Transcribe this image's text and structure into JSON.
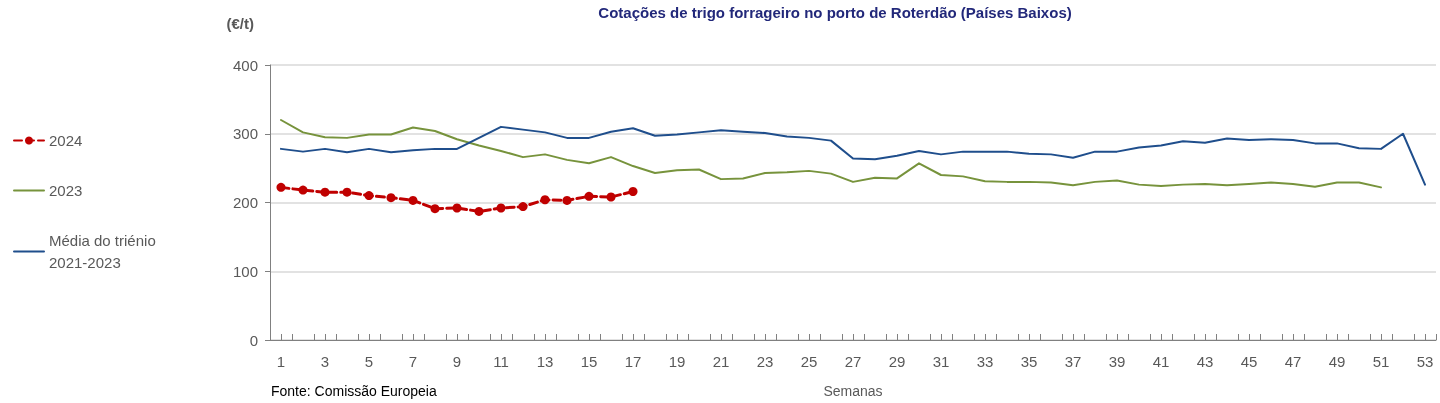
{
  "chart_data": {
    "type": "line",
    "title": "Cotações de trigo forrageiro no porto de Roterdão (Países Baixos)",
    "xlabel": "Semanas",
    "ylabel": "(€/t)",
    "annotations": [
      "Fonte: Comissão Europeia"
    ],
    "x": [
      1,
      2,
      3,
      4,
      5,
      6,
      7,
      8,
      9,
      10,
      11,
      12,
      13,
      14,
      15,
      16,
      17,
      18,
      19,
      20,
      21,
      22,
      23,
      24,
      25,
      26,
      27,
      28,
      29,
      30,
      31,
      32,
      33,
      34,
      35,
      36,
      37,
      38,
      39,
      40,
      41,
      42,
      43,
      44,
      45,
      46,
      47,
      48,
      49,
      50,
      51,
      52,
      53
    ],
    "xlim": [
      0.5,
      53.5
    ],
    "xticks": [
      {
        "value": 0.5,
        "label": null
      },
      1,
      {
        "value": 1.5,
        "label": null
      },
      {
        "value": 2.5,
        "label": null
      },
      3,
      {
        "value": 3.5,
        "label": null
      },
      {
        "value": 4.5,
        "label": null
      },
      5,
      {
        "value": 5.5,
        "label": null
      },
      {
        "value": 6.5,
        "label": null
      },
      7,
      {
        "value": 7.5,
        "label": null
      },
      {
        "value": 8.5,
        "label": null
      },
      9,
      {
        "value": 9.5,
        "label": null
      },
      {
        "value": 10.5,
        "label": null
      },
      11,
      {
        "value": 11.5,
        "label": null
      },
      {
        "value": 12.5,
        "label": null
      },
      13,
      {
        "value": 13.5,
        "label": null
      },
      {
        "value": 14.5,
        "label": null
      },
      15,
      {
        "value": 15.5,
        "label": null
      },
      {
        "value": 16.5,
        "label": null
      },
      17,
      {
        "value": 17.5,
        "label": null
      },
      {
        "value": 18.5,
        "label": null
      },
      19,
      {
        "value": 19.5,
        "label": null
      },
      {
        "value": 20.5,
        "label": null
      },
      21,
      {
        "value": 21.5,
        "label": null
      },
      {
        "value": 22.5,
        "label": null
      },
      23,
      {
        "value": 23.5,
        "label": null
      },
      {
        "value": 24.5,
        "label": null
      },
      25,
      {
        "value": 25.5,
        "label": null
      },
      {
        "value": 26.5,
        "label": null
      },
      27,
      {
        "value": 27.5,
        "label": null
      },
      {
        "value": 28.5,
        "label": null
      },
      29,
      {
        "value": 29.5,
        "label": null
      },
      {
        "value": 30.5,
        "label": null
      },
      31,
      {
        "value": 31.5,
        "label": null
      },
      {
        "value": 32.5,
        "label": null
      },
      33,
      {
        "value": 33.5,
        "label": null
      },
      {
        "value": 34.5,
        "label": null
      },
      35,
      {
        "value": 35.5,
        "label": null
      },
      {
        "value": 36.5,
        "label": null
      },
      37,
      {
        "value": 37.5,
        "label": null
      },
      {
        "value": 38.5,
        "label": null
      },
      39,
      {
        "value": 39.5,
        "label": null
      },
      {
        "value": 40.5,
        "label": null
      },
      41,
      {
        "value": 41.5,
        "label": null
      },
      {
        "value": 42.5,
        "label": null
      },
      43,
      {
        "value": 43.5,
        "label": null
      },
      {
        "value": 44.5,
        "label": null
      },
      45,
      {
        "value": 45.5,
        "label": null
      },
      {
        "value": 46.5,
        "label": null
      },
      47,
      {
        "value": 47.5,
        "label": null
      },
      {
        "value": 48.5,
        "label": null
      },
      49,
      {
        "value": 49.5,
        "label": null
      },
      {
        "value": 50.5,
        "label": null
      },
      51,
      {
        "value": 51.5,
        "label": null
      },
      {
        "value": 52.5,
        "label": null
      },
      53,
      {
        "value": 53.5,
        "label": null
      }
    ],
    "series": [
      {
        "name": "2024",
        "color": "#c00000",
        "marker": "circle",
        "line_style": "dashed",
        "values": [
          222,
          218,
          215,
          215,
          210,
          207,
          203,
          191,
          192,
          187,
          192,
          194,
          204,
          203,
          209,
          208,
          216,
          null,
          null,
          null,
          null,
          null,
          null,
          null,
          null,
          null,
          null,
          null,
          null,
          null,
          null,
          null,
          null,
          null,
          null,
          null,
          null,
          null,
          null,
          null,
          null,
          null,
          null,
          null,
          null,
          null,
          null,
          null,
          null,
          null,
          null,
          null,
          null
        ]
      },
      {
        "name": "2023",
        "color": "#77933c",
        "values": [
          320,
          302,
          295,
          294,
          299,
          299,
          309,
          304,
          292,
          283,
          275,
          266,
          270,
          262,
          257,
          266,
          253,
          243,
          247,
          248,
          234,
          235,
          243,
          244,
          246,
          242,
          230,
          236,
          235,
          257,
          240,
          238,
          231,
          230,
          230,
          229,
          225,
          230,
          232,
          226,
          224,
          226,
          227,
          225,
          227,
          229,
          227,
          223,
          229,
          229,
          222,
          null,
          null
        ]
      },
      {
        "name": "Média do triénio 2021-2023",
        "color": "#1f4e8c",
        "values": [
          278,
          274,
          278,
          273,
          278,
          273,
          276,
          278,
          278,
          294,
          310,
          306,
          302,
          294,
          294,
          303,
          308,
          297,
          299,
          302,
          305,
          303,
          301,
          296,
          294,
          290,
          264,
          263,
          268,
          275,
          270,
          274,
          274,
          274,
          271,
          270,
          265,
          274,
          274,
          280,
          283,
          289,
          287,
          293,
          291,
          292,
          291,
          286,
          286,
          279,
          278,
          300,
          226
        ]
      }
    ],
    "ylim": [
      0,
      400
    ],
    "yticks": [
      0,
      100,
      200,
      300,
      400
    ],
    "grid": "y",
    "legend": "left",
    "marker": "none",
    "line_style": "solid"
  }
}
